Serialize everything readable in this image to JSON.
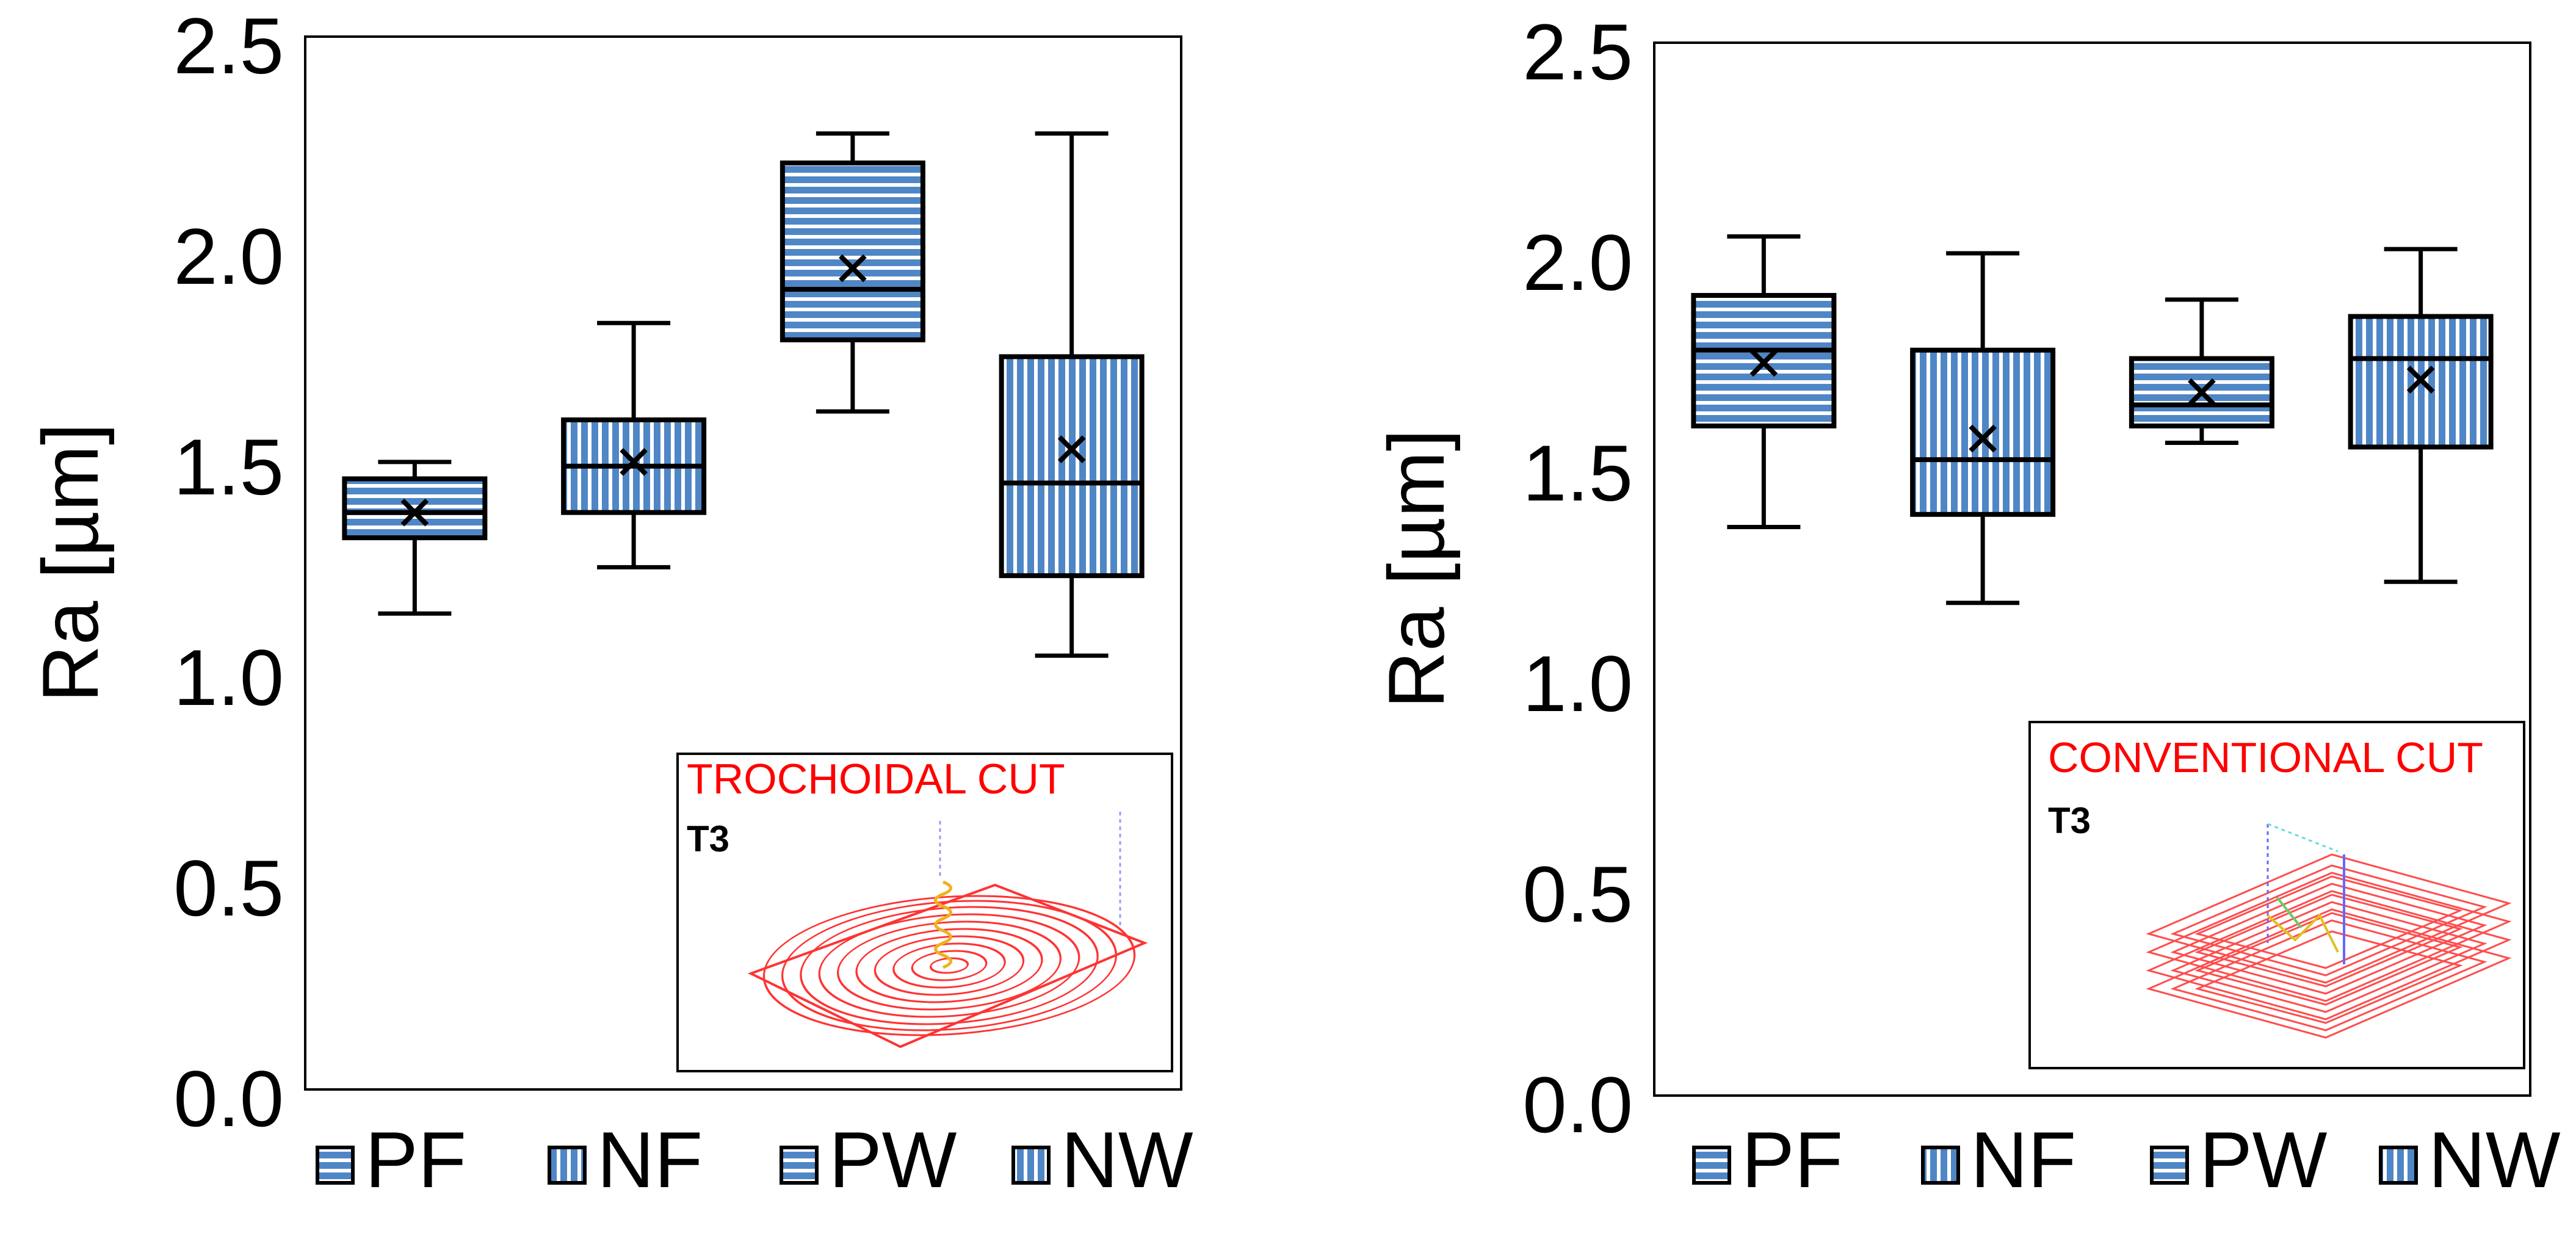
{
  "chart_data": [
    {
      "type": "boxplot",
      "ylabel": "Ra [µm]",
      "ylim": [
        0,
        2.5
      ],
      "yticks": [
        "0.0",
        "0.5",
        "1.0",
        "1.5",
        "2.0",
        "2.5"
      ],
      "grid": false,
      "legend": {
        "position": "bottom",
        "entries": [
          "PF",
          "NF",
          "PW",
          "NW"
        ]
      },
      "categories": [
        "PF",
        "NF",
        "PW",
        "NW"
      ],
      "boxes": [
        {
          "name": "PF",
          "pattern": "horizontal",
          "min": 1.13,
          "q1": 1.31,
          "median": 1.37,
          "q3": 1.45,
          "max": 1.49,
          "mean": 1.37
        },
        {
          "name": "NF",
          "pattern": "vertical",
          "min": 1.24,
          "q1": 1.37,
          "median": 1.48,
          "q3": 1.59,
          "max": 1.82,
          "mean": 1.49
        },
        {
          "name": "PW",
          "pattern": "horizontal",
          "min": 1.61,
          "q1": 1.78,
          "median": 1.9,
          "q3": 2.2,
          "max": 2.27,
          "mean": 1.95
        },
        {
          "name": "NW",
          "pattern": "vertical",
          "min": 1.03,
          "q1": 1.22,
          "median": 1.44,
          "q3": 1.74,
          "max": 2.27,
          "mean": 1.52
        }
      ],
      "inset": {
        "title": "TROCHOIDAL CUT",
        "tool": "T3"
      }
    },
    {
      "type": "boxplot",
      "ylabel": "Ra [µm]",
      "ylim": [
        0,
        2.5
      ],
      "yticks": [
        "0.0",
        "0.5",
        "1.0",
        "1.5",
        "2.0",
        "2.5"
      ],
      "grid": false,
      "legend": {
        "position": "bottom",
        "entries": [
          "PF",
          "NF",
          "PW",
          "NW"
        ]
      },
      "categories": [
        "PF",
        "NF",
        "PW",
        "NW"
      ],
      "boxes": [
        {
          "name": "PF",
          "pattern": "horizontal",
          "min": 1.35,
          "q1": 1.59,
          "median": 1.77,
          "q3": 1.9,
          "max": 2.04,
          "mean": 1.74
        },
        {
          "name": "NF",
          "pattern": "vertical",
          "min": 1.17,
          "q1": 1.38,
          "median": 1.51,
          "q3": 1.77,
          "max": 2.0,
          "mean": 1.56
        },
        {
          "name": "PW",
          "pattern": "horizontal",
          "min": 1.55,
          "q1": 1.59,
          "median": 1.64,
          "q3": 1.75,
          "max": 1.89,
          "mean": 1.67
        },
        {
          "name": "NW",
          "pattern": "vertical",
          "min": 1.22,
          "q1": 1.54,
          "median": 1.75,
          "q3": 1.85,
          "max": 2.01,
          "mean": 1.7
        }
      ],
      "inset": {
        "title": "CONVENTIONAL CUT",
        "tool": "T3"
      }
    }
  ],
  "colors": {
    "box_fill": "#4f86c6",
    "stripe": "#ffffff",
    "outline": "#000000",
    "inset_title": "#ff0000",
    "toolpath": "#ff3333"
  }
}
